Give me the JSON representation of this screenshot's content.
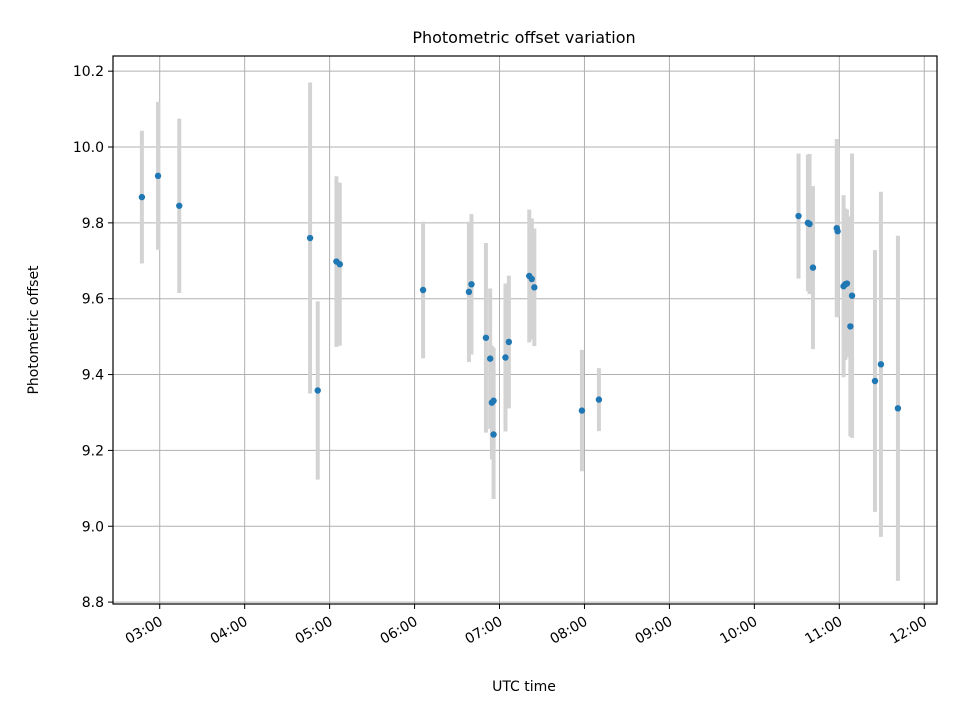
{
  "chart_data": {
    "type": "scatter",
    "title": "Photometric offset variation",
    "xlabel": "UTC time",
    "ylabel": "Photometric offset",
    "x_unit": "hours UTC",
    "xlim": [
      2.45,
      12.15
    ],
    "ylim": [
      8.795,
      10.24
    ],
    "grid": true,
    "xticks": [
      {
        "value": 3,
        "label": "03:00"
      },
      {
        "value": 4,
        "label": "04:00"
      },
      {
        "value": 5,
        "label": "05:00"
      },
      {
        "value": 6,
        "label": "06:00"
      },
      {
        "value": 7,
        "label": "07:00"
      },
      {
        "value": 8,
        "label": "08:00"
      },
      {
        "value": 9,
        "label": "09:00"
      },
      {
        "value": 10,
        "label": "10:00"
      },
      {
        "value": 11,
        "label": "11:00"
      },
      {
        "value": 12,
        "label": "12:00"
      }
    ],
    "yticks": [
      {
        "value": 8.8,
        "label": "8.8"
      },
      {
        "value": 9.0,
        "label": "9.0"
      },
      {
        "value": 9.2,
        "label": "9.2"
      },
      {
        "value": 9.4,
        "label": "9.4"
      },
      {
        "value": 9.6,
        "label": "9.6"
      },
      {
        "value": 9.8,
        "label": "9.8"
      },
      {
        "value": 10.0,
        "label": "10.0"
      },
      {
        "value": 10.2,
        "label": "10.2"
      }
    ],
    "marker_color": "#1f77b4",
    "errorbar_color": "#d3d3d3",
    "points": [
      {
        "x": 2.79,
        "y": 9.868,
        "err": 0.175
      },
      {
        "x": 2.98,
        "y": 9.924,
        "err": 0.195
      },
      {
        "x": 3.23,
        "y": 9.845,
        "err": 0.23
      },
      {
        "x": 4.77,
        "y": 9.76,
        "err": 0.41
      },
      {
        "x": 4.86,
        "y": 9.358,
        "err": 0.235
      },
      {
        "x": 5.08,
        "y": 9.698,
        "err": 0.225
      },
      {
        "x": 5.12,
        "y": 9.691,
        "err": 0.215
      },
      {
        "x": 6.1,
        "y": 9.623,
        "err": 0.18
      },
      {
        "x": 6.64,
        "y": 9.618,
        "err": 0.185
      },
      {
        "x": 6.67,
        "y": 9.638,
        "err": 0.185
      },
      {
        "x": 6.84,
        "y": 9.497,
        "err": 0.25
      },
      {
        "x": 6.89,
        "y": 9.442,
        "err": 0.185
      },
      {
        "x": 6.91,
        "y": 9.326,
        "err": 0.15
      },
      {
        "x": 6.93,
        "y": 9.331,
        "err": 0.14
      },
      {
        "x": 6.93,
        "y": 9.242,
        "err": 0.17
      },
      {
        "x": 7.07,
        "y": 9.445,
        "err": 0.195
      },
      {
        "x": 7.11,
        "y": 9.486,
        "err": 0.175
      },
      {
        "x": 7.35,
        "y": 9.66,
        "err": 0.175
      },
      {
        "x": 7.38,
        "y": 9.652,
        "err": 0.16
      },
      {
        "x": 7.41,
        "y": 9.63,
        "err": 0.155
      },
      {
        "x": 7.97,
        "y": 9.305,
        "err": 0.16
      },
      {
        "x": 8.17,
        "y": 9.334,
        "err": 0.083
      },
      {
        "x": 10.52,
        "y": 9.818,
        "err": 0.165
      },
      {
        "x": 10.63,
        "y": 9.8,
        "err": 0.18
      },
      {
        "x": 10.65,
        "y": 9.797,
        "err": 0.185
      },
      {
        "x": 10.69,
        "y": 9.682,
        "err": 0.215
      },
      {
        "x": 10.97,
        "y": 9.786,
        "err": 0.235
      },
      {
        "x": 10.98,
        "y": 9.778,
        "err": 0.225
      },
      {
        "x": 11.05,
        "y": 9.633,
        "err": 0.24
      },
      {
        "x": 11.07,
        "y": 9.638,
        "err": 0.2
      },
      {
        "x": 11.09,
        "y": 9.64,
        "err": 0.195
      },
      {
        "x": 11.13,
        "y": 9.527,
        "err": 0.29
      },
      {
        "x": 11.15,
        "y": 9.608,
        "err": 0.375
      },
      {
        "x": 11.42,
        "y": 9.383,
        "err": 0.345
      },
      {
        "x": 11.49,
        "y": 9.427,
        "err": 0.455
      },
      {
        "x": 11.69,
        "y": 9.311,
        "err": 0.455
      }
    ]
  }
}
